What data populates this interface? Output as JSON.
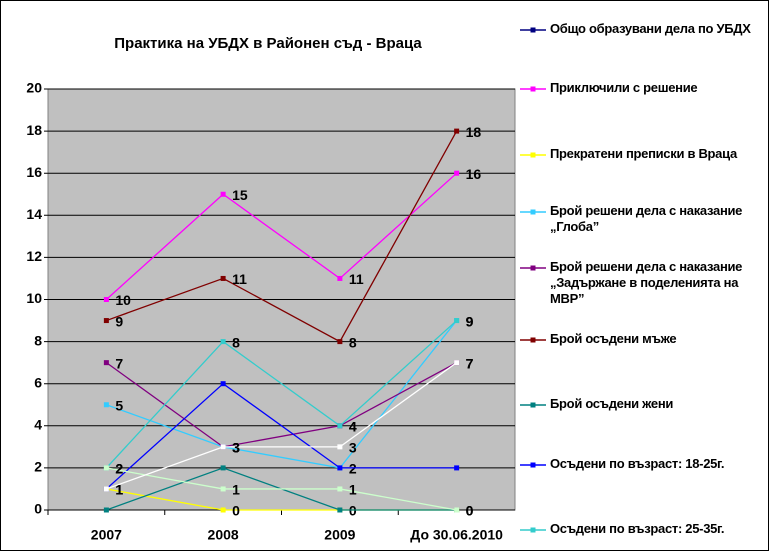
{
  "chart_data": {
    "type": "line",
    "title": "Практика на УБДХ в Районен съд - Враца",
    "categories": [
      "2007",
      "2008",
      "2009",
      "До 30.06.2010"
    ],
    "ylim": [
      0,
      20
    ],
    "yticks": [
      0,
      2,
      4,
      6,
      8,
      10,
      12,
      14,
      16,
      18,
      20
    ],
    "grid": true,
    "plot_background": "#c0c0c0",
    "legend": "right",
    "series": [
      {
        "name": "Общо образувани дела по УБДХ",
        "color": "#000080",
        "values": [
          null,
          null,
          null,
          null
        ]
      },
      {
        "name": "Приключили с решение",
        "color": "#ff00ff",
        "values": [
          10,
          15,
          11,
          16
        ],
        "data_labels": true
      },
      {
        "name": "Прекратени преписки в Враца",
        "color": "#ffff00",
        "values": [
          1,
          0,
          0,
          0
        ],
        "data_labels": true
      },
      {
        "name": "Брой решени дела с наказание „Глоба”",
        "color": "#33ccff",
        "values": [
          5,
          3,
          2,
          9
        ],
        "data_labels": true
      },
      {
        "name": "Брой решени дела с наказание „Задържане в поделенията на МВР”",
        "color": "#800080",
        "values": [
          7,
          3,
          4,
          7
        ],
        "data_labels": true
      },
      {
        "name": "Брой осъдени мъже",
        "color": "#800000",
        "values": [
          9,
          11,
          8,
          18
        ],
        "data_labels": true
      },
      {
        "name": "Брой осъдени жени",
        "color": "#008080",
        "values": [
          0,
          2,
          0,
          0
        ]
      },
      {
        "name": "Осъдени по възраст: 18-25г.",
        "color": "#0000ff",
        "values": [
          1,
          6,
          2,
          2
        ]
      },
      {
        "name": "Осъдени по възраст: 25-35г.",
        "color": "#33cccc",
        "values": [
          2,
          8,
          4,
          9
        ],
        "data_labels": true
      },
      {
        "color": "#ccffcc",
        "values": [
          2,
          1,
          1,
          0
        ],
        "data_labels": true
      },
      {
        "color": "#ffffff",
        "values": [
          1,
          3,
          3,
          7
        ],
        "data_labels": true
      }
    ]
  }
}
